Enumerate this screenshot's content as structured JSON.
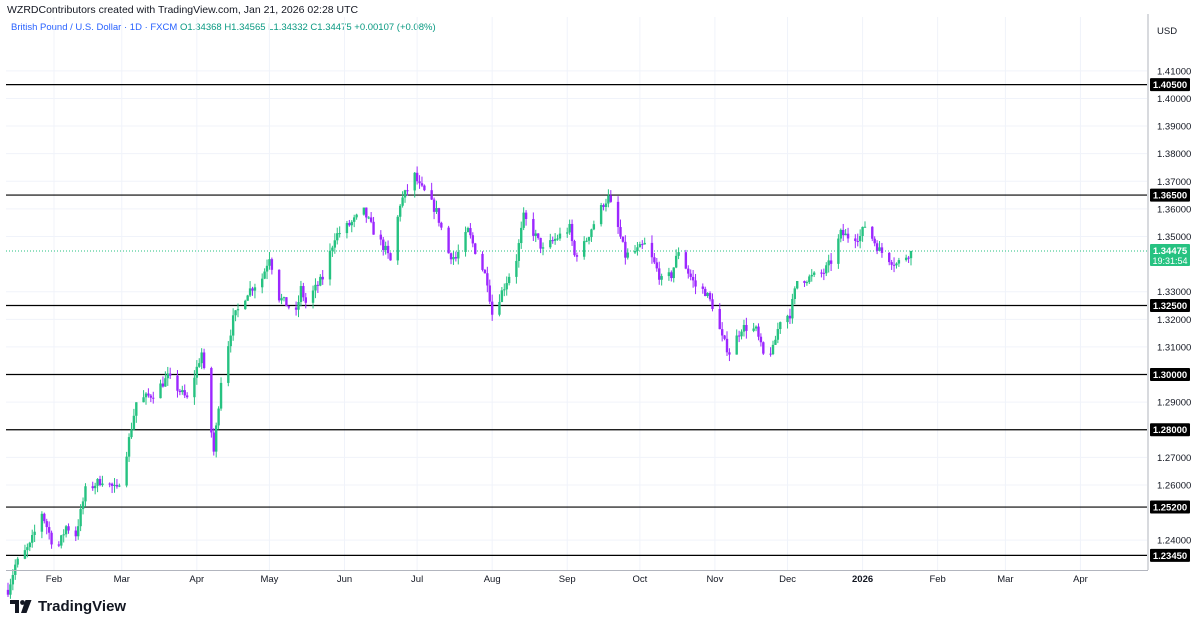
{
  "header": {
    "credit": "WZRDContributors created with TradingView.com, Jan 21, 2026 02:28 UTC",
    "symbol": "British Pound / U.S. Dollar · 1D · FXCM",
    "open": "O1.34368",
    "high": "H1.34565",
    "low": "L1.34332",
    "close": "C1.34475",
    "change": "+0.00107 (+0.08%)"
  },
  "brand": {
    "name": "TradingView"
  },
  "price_axis": {
    "currency": "USD",
    "current_price": "1.34475",
    "countdown": "19:31:54"
  },
  "colors": {
    "up": "#26c281",
    "down": "#9c27ff",
    "accent": "#2962ff",
    "level_line": "#000000"
  },
  "chart_data": {
    "type": "candlestick",
    "title": "",
    "x_ticks": [
      "Feb",
      "Mar",
      "Apr",
      "May",
      "Jun",
      "Jul",
      "Aug",
      "Sep",
      "Oct",
      "Nov",
      "Dec",
      "2026",
      "Feb",
      "Mar",
      "Apr"
    ],
    "y_ticks": [
      "1.41000",
      "1.40000",
      "1.39000",
      "1.38000",
      "1.37000",
      "1.36000",
      "1.35000",
      "1.33000",
      "1.32000",
      "1.31000",
      "1.29000",
      "1.27000",
      "1.26000",
      "1.24000"
    ],
    "y_range": [
      1.2292,
      1.4295
    ],
    "levels": [
      {
        "price": 1.405,
        "label": "1.40500"
      },
      {
        "price": 1.365,
        "label": "1.36500"
      },
      {
        "price": 1.325,
        "label": "1.32500"
      },
      {
        "price": 1.3,
        "label": "1.30000"
      },
      {
        "price": 1.28,
        "label": "1.28000"
      },
      {
        "price": 1.252,
        "label": "1.25200"
      },
      {
        "price": 1.2345,
        "label": "1.23450"
      }
    ],
    "current_price": 1.34475,
    "start_date": "2025-01-13",
    "end_date": "2026-01-21",
    "close_path": [
      [
        "2025-01-13",
        1.222
      ],
      [
        "2025-01-16",
        1.231
      ],
      [
        "2025-01-22",
        1.238
      ],
      [
        "2025-01-27",
        1.25
      ],
      [
        "2025-01-31",
        1.24
      ],
      [
        "2025-02-03",
        1.238
      ],
      [
        "2025-02-06",
        1.245
      ],
      [
        "2025-02-10",
        1.242
      ],
      [
        "2025-02-14",
        1.258
      ],
      [
        "2025-02-21",
        1.262
      ],
      [
        "2025-02-27",
        1.258
      ],
      [
        "2025-03-03",
        1.272
      ],
      [
        "2025-03-07",
        1.29
      ],
      [
        "2025-03-14",
        1.293
      ],
      [
        "2025-03-20",
        1.299
      ],
      [
        "2025-03-28",
        1.291
      ],
      [
        "2025-04-03",
        1.308
      ],
      [
        "2025-04-08",
        1.272
      ],
      [
        "2025-04-11",
        1.298
      ],
      [
        "2025-04-16",
        1.32
      ],
      [
        "2025-04-22",
        1.33
      ],
      [
        "2025-04-28",
        1.335
      ],
      [
        "2025-05-01",
        1.343
      ],
      [
        "2025-05-05",
        1.328
      ],
      [
        "2025-05-12",
        1.322
      ],
      [
        "2025-05-14",
        1.331
      ],
      [
        "2025-05-16",
        1.326
      ],
      [
        "2025-05-23",
        1.335
      ],
      [
        "2025-05-28",
        1.35
      ],
      [
        "2025-06-04",
        1.355
      ],
      [
        "2025-06-09",
        1.359
      ],
      [
        "2025-06-13",
        1.352
      ],
      [
        "2025-06-18",
        1.345
      ],
      [
        "2025-06-20",
        1.341
      ],
      [
        "2025-06-24",
        1.362
      ],
      [
        "2025-06-30",
        1.372
      ],
      [
        "2025-07-02",
        1.368
      ],
      [
        "2025-07-04",
        1.366
      ],
      [
        "2025-07-09",
        1.359
      ],
      [
        "2025-07-14",
        1.344
      ],
      [
        "2025-07-17",
        1.342
      ],
      [
        "2025-07-22",
        1.352
      ],
      [
        "2025-07-25",
        1.345
      ],
      [
        "2025-07-30",
        1.334
      ],
      [
        "2025-08-01",
        1.322
      ],
      [
        "2025-08-05",
        1.33
      ],
      [
        "2025-08-11",
        1.342
      ],
      [
        "2025-08-14",
        1.357
      ],
      [
        "2025-08-19",
        1.35
      ],
      [
        "2025-08-22",
        1.345
      ],
      [
        "2025-08-27",
        1.349
      ],
      [
        "2025-09-02",
        1.353
      ],
      [
        "2025-09-04",
        1.343
      ],
      [
        "2025-09-08",
        1.347
      ],
      [
        "2025-09-11",
        1.353
      ],
      [
        "2025-09-16",
        1.362
      ],
      [
        "2025-09-18",
        1.364
      ],
      [
        "2025-09-22",
        1.353
      ],
      [
        "2025-09-25",
        1.343
      ],
      [
        "2025-09-30",
        1.345
      ],
      [
        "2025-10-03",
        1.347
      ],
      [
        "2025-10-07",
        1.34
      ],
      [
        "2025-10-10",
        1.334
      ],
      [
        "2025-10-14",
        1.336
      ],
      [
        "2025-10-17",
        1.345
      ],
      [
        "2025-10-21",
        1.337
      ],
      [
        "2025-10-24",
        1.332
      ],
      [
        "2025-10-28",
        1.33
      ],
      [
        "2025-10-31",
        1.325
      ],
      [
        "2025-11-04",
        1.313
      ],
      [
        "2025-11-07",
        1.308
      ],
      [
        "2025-11-12",
        1.317
      ],
      [
        "2025-11-14",
        1.317
      ],
      [
        "2025-11-18",
        1.316
      ],
      [
        "2025-11-21",
        1.307
      ],
      [
        "2025-11-25",
        1.309
      ],
      [
        "2025-11-28",
        1.32
      ],
      [
        "2025-12-02",
        1.322
      ],
      [
        "2025-12-05",
        1.334
      ],
      [
        "2025-12-10",
        1.335
      ],
      [
        "2025-12-16",
        1.337
      ],
      [
        "2025-12-19",
        1.341
      ],
      [
        "2025-12-23",
        1.351
      ],
      [
        "2025-12-26",
        1.35
      ],
      [
        "2025-12-31",
        1.35
      ],
      [
        "2026-01-02",
        1.354
      ],
      [
        "2026-01-06",
        1.348
      ],
      [
        "2026-01-08",
        1.345
      ],
      [
        "2026-01-12",
        1.342
      ],
      [
        "2026-01-15",
        1.34
      ],
      [
        "2026-01-19",
        1.343
      ],
      [
        "2026-01-21",
        1.34475
      ]
    ]
  }
}
